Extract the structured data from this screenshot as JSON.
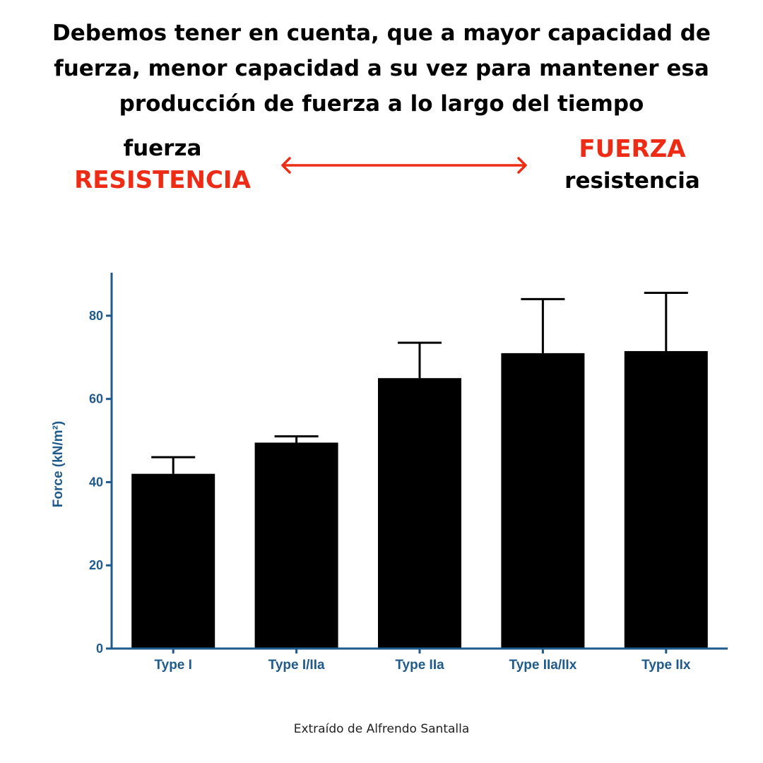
{
  "header": {
    "text": "Debemos tener en cuenta, que a mayor capacidad de fuerza, menor capacidad a su vez para mantener esa producción de fuerza a lo largo del tiempo"
  },
  "left_label": {
    "small": "fuerza",
    "big": "RESISTENCIA"
  },
  "right_label": {
    "big": "FUERZA",
    "small": "resistencia"
  },
  "colors": {
    "accent": "#ee2b14",
    "axis": "#1f5a8c",
    "bar": "#000000"
  },
  "chart_data": {
    "type": "bar",
    "title": "",
    "xlabel": "",
    "ylabel": "Force (kN/m²)",
    "categories": [
      "Type I",
      "Type I/IIa",
      "Type IIa",
      "Type IIa/IIx",
      "Type IIx"
    ],
    "values": [
      42,
      49.5,
      65,
      71,
      71.5
    ],
    "error_upper": [
      46,
      51,
      73.5,
      84,
      85.5
    ],
    "ylim": [
      0,
      90
    ],
    "yticks": [
      0,
      20,
      40,
      60,
      80
    ],
    "grid": false,
    "legend": "none"
  },
  "footer": {
    "credit": "Extraído de Alfrendo Santalla"
  }
}
